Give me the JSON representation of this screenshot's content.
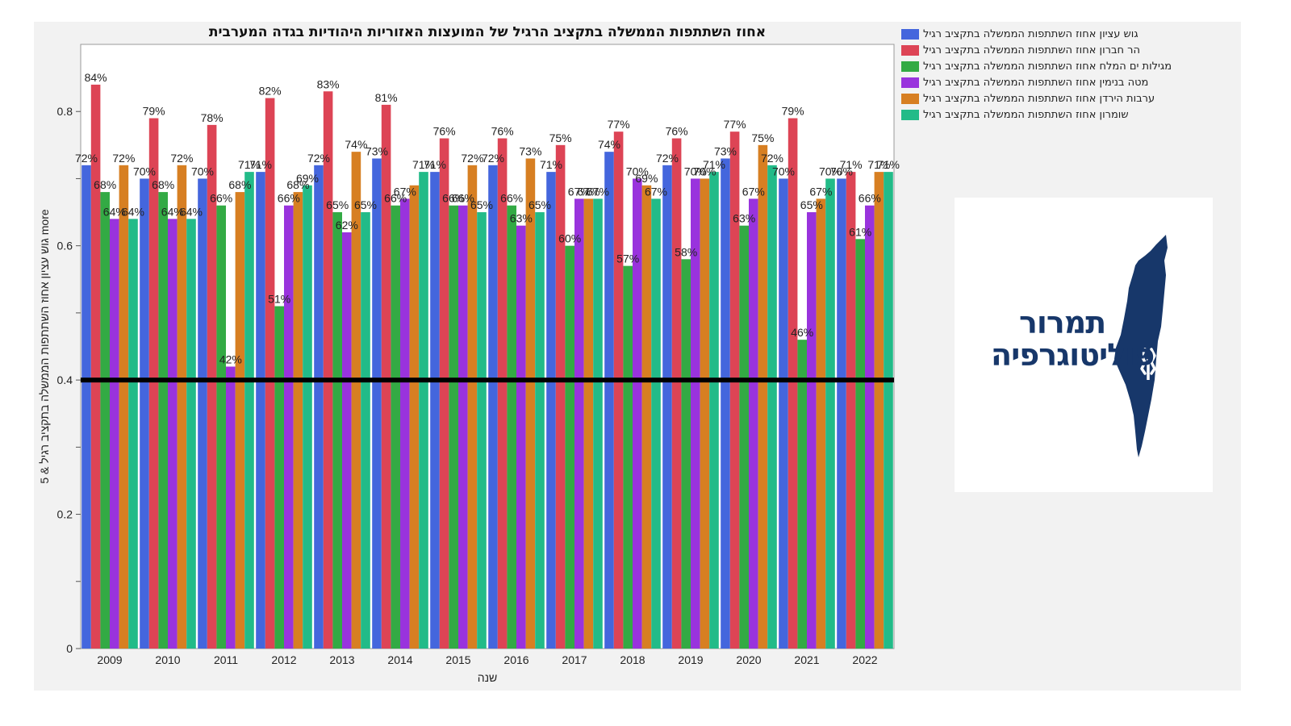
{
  "chart_data": {
    "type": "bar",
    "title": "אחוז השתתפות הממשלה בתקציב הרגיל של המועצות האזוריות היהודיות בגדה המערבית",
    "xlabel": "שנה",
    "ylabel": "גוש עציון אחוז השתתפות הממשלה בתקציב רגיל & 5 more",
    "ylim": [
      0,
      0.9
    ],
    "yticks": [
      "0",
      "0.2",
      "0.4",
      "0.6",
      "0.8"
    ],
    "ytick_values": [
      0,
      0.2,
      0.4,
      0.6,
      0.8
    ],
    "reference_line": 0.4,
    "grid": false,
    "legend_position": "right",
    "categories": [
      "2009",
      "2010",
      "2011",
      "2012",
      "2013",
      "2014",
      "2015",
      "2016",
      "2017",
      "2018",
      "2019",
      "2020",
      "2021",
      "2022"
    ],
    "series": [
      {
        "name": "גוש עציון אחוז השתתפות הממשלה בתקציב רגיל",
        "color": "#4466dd",
        "values": [
          0.72,
          0.7,
          0.7,
          0.71,
          0.72,
          0.73,
          0.71,
          0.72,
          0.71,
          0.74,
          0.72,
          0.73,
          0.7,
          0.7
        ],
        "labels": [
          "72%",
          "70%",
          "70%",
          "71%",
          "72%",
          "73%",
          "71%",
          "72%",
          "71%",
          "74%",
          "72%",
          "73%",
          "70%",
          "70%"
        ]
      },
      {
        "name": "הר חברון אחוז השתתפות הממשלה בתקציב רגיל",
        "color": "#dd4455",
        "values": [
          0.84,
          0.79,
          0.78,
          0.82,
          0.83,
          0.81,
          0.76,
          0.76,
          0.75,
          0.77,
          0.76,
          0.77,
          0.79,
          0.71
        ],
        "labels": [
          "84%",
          "79%",
          "78%",
          "82%",
          "83%",
          "81%",
          "76%",
          "76%",
          "75%",
          "77%",
          "76%",
          "77%",
          "79%",
          "71%"
        ]
      },
      {
        "name": "מגילות ים המלח אחוז השתתפות הממשלה בתקציב רגיל",
        "color": "#33aa44",
        "values": [
          0.68,
          0.68,
          0.66,
          0.51,
          0.65,
          0.66,
          0.66,
          0.66,
          0.6,
          0.57,
          0.58,
          0.63,
          0.46,
          0.61
        ],
        "labels": [
          "68%",
          "68%",
          "66%",
          "51%",
          "65%",
          "66%",
          "66%",
          "66%",
          "60%",
          "57%",
          "58%",
          "63%",
          "46%",
          "61%"
        ]
      },
      {
        "name": "מטה בנימין אחוז השתתפות הממשלה בתקציב רגיל",
        "color": "#9933dd",
        "values": [
          0.64,
          0.64,
          0.42,
          0.66,
          0.62,
          0.67,
          0.66,
          0.63,
          0.67,
          0.7,
          0.7,
          0.67,
          0.65,
          0.66
        ],
        "labels": [
          "64%",
          "64%",
          "42%",
          "66%",
          "62%",
          "67%",
          "66%",
          "63%",
          "67%",
          "70%",
          "70%",
          "67%",
          "65%",
          "66%"
        ]
      },
      {
        "name": "ערבות הירדן אחוז השתתפות הממשלה בתקציב רגיל",
        "color": "#d77f22",
        "values": [
          0.72,
          0.72,
          0.68,
          0.68,
          0.74,
          0.69,
          0.72,
          0.73,
          0.67,
          0.69,
          0.7,
          0.75,
          0.67,
          0.71
        ],
        "labels": [
          "72%",
          "72%",
          "68%",
          "68%",
          "74%",
          "",
          "72%",
          "73%",
          "67%",
          "69%",
          "70%",
          "75%",
          "67%",
          "71%"
        ]
      },
      {
        "name": "שומרון אחוז השתתפות הממשלה בתקציב רגיל",
        "color": "#22bb88",
        "values": [
          0.64,
          0.64,
          0.71,
          0.69,
          0.65,
          0.71,
          0.65,
          0.65,
          0.67,
          0.67,
          0.71,
          0.72,
          0.7,
          0.71
        ],
        "labels": [
          "64%",
          "64%",
          "71%",
          "69%",
          "65%",
          "71%",
          "65%",
          "65%",
          "67%",
          "67%",
          "71%",
          "72%",
          "70%",
          "71%"
        ]
      }
    ]
  },
  "logo": {
    "line1": "תמרור",
    "line2": "פוליטוגרפיה",
    "color": "#17376a"
  }
}
